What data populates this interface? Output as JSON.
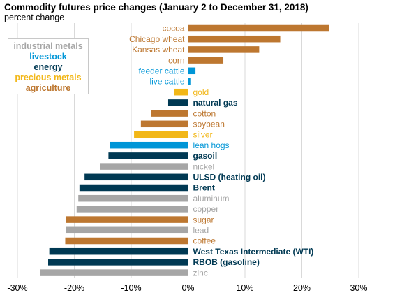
{
  "title": "Commodity futures price changes (January 2 to December 31, 2018)",
  "subtitle": "percent change",
  "colors": {
    "industrial_metals": "#a6a6a6",
    "livestock": "#0096d7",
    "energy": "#003953",
    "precious_metals": "#f2b718",
    "agriculture": "#bd7730",
    "grid": "#d9d9d9"
  },
  "legend": [
    {
      "label": "industrial metals",
      "group": "industrial_metals"
    },
    {
      "label": "livestock",
      "group": "livestock"
    },
    {
      "label": "energy",
      "group": "energy"
    },
    {
      "label": "precious metals",
      "group": "precious_metals"
    },
    {
      "label": "agriculture",
      "group": "agriculture"
    }
  ],
  "chart_data": {
    "type": "bar",
    "orientation": "horizontal",
    "title": "Commodity futures price changes (January 2 to December 31, 2018)",
    "subtitle": "percent change",
    "xlim": [
      -30,
      30
    ],
    "xticks": [
      -30,
      -20,
      -10,
      0,
      10,
      20,
      30
    ],
    "xtick_labels": [
      "-30%",
      "-20%",
      "-10%",
      "0%",
      "10%",
      "20%",
      "30%"
    ],
    "grid": true,
    "legend_position": "top-left",
    "categories": [
      "cocoa",
      "Chicago wheat",
      "Kansas wheat",
      "corn",
      "feeder cattle",
      "live cattle",
      "gold",
      "natural gas",
      "cotton",
      "soybean",
      "silver",
      "lean hogs",
      "gasoil",
      "nickel",
      "ULSD (heating oil)",
      "Brent",
      "aluminum",
      "copper",
      "sugar",
      "lead",
      "coffee",
      "West Texas Intermediate (WTI)",
      "RBOB (gasoline)",
      "zinc"
    ],
    "values": [
      24.8,
      16.2,
      12.5,
      6.2,
      1.3,
      0.4,
      -2.4,
      -3.5,
      -6.5,
      -8.3,
      -9.5,
      -13.7,
      -14.0,
      -15.5,
      -18.2,
      -19.1,
      -19.3,
      -19.6,
      -21.5,
      -21.5,
      -21.6,
      -24.4,
      -24.6,
      -26.0
    ],
    "groups": [
      "agriculture",
      "agriculture",
      "agriculture",
      "agriculture",
      "livestock",
      "livestock",
      "precious_metals",
      "energy",
      "agriculture",
      "agriculture",
      "precious_metals",
      "livestock",
      "energy",
      "industrial_metals",
      "energy",
      "energy",
      "industrial_metals",
      "industrial_metals",
      "agriculture",
      "industrial_metals",
      "agriculture",
      "energy",
      "energy",
      "industrial_metals"
    ]
  }
}
